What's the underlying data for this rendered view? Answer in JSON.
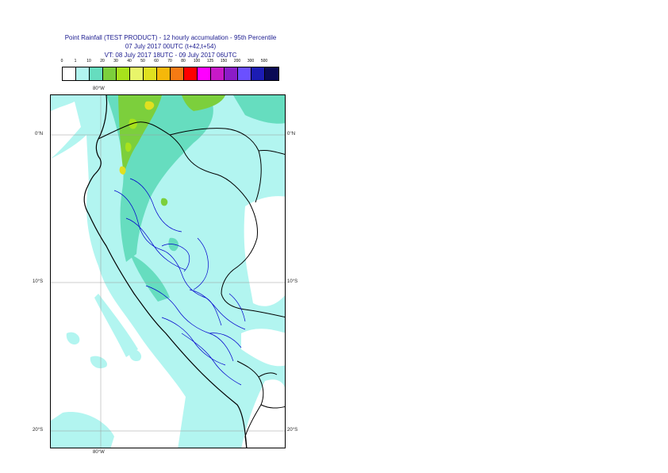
{
  "title": {
    "line1": "Point Rainfall (TEST PRODUCT) - 12 hourly accumulation - 95th Percentile",
    "line2": "07 July 2017 00UTC (t+42,t+54)",
    "line3": "VT: 08 July 2017 18UTC - 09 July 2017 06UTC"
  },
  "legend": {
    "thresholds": [
      "0",
      "1",
      "10",
      "20",
      "30",
      "40",
      "50",
      "60",
      "70",
      "80",
      "100",
      "125",
      "150",
      "200",
      "300",
      "500"
    ],
    "colors": [
      "#ffffff",
      "#b2f5f0",
      "#66ddbf",
      "#7ccf3c",
      "#a8e21c",
      "#e8f56a",
      "#e0e020",
      "#f5b80a",
      "#f57b14",
      "#ff0000",
      "#ff00ff",
      "#c819c8",
      "#8b1cc8",
      "#6b50ff",
      "#1c1cb4",
      "#0a0a55"
    ]
  },
  "axes": {
    "lon_top": "80°W",
    "lon_bottom": "80°W",
    "lat_labels": [
      "0°N",
      "10°S",
      "20°S"
    ]
  }
}
